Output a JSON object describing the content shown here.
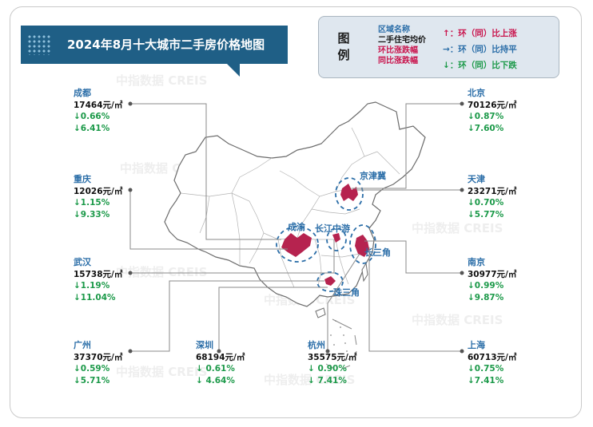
{
  "title": "2024年8月十大城市二手房价格地图",
  "legend": {
    "title": "图例",
    "items": [
      "区域名称",
      "二手住宅均价",
      "环比涨跌幅",
      "同比涨跌幅"
    ],
    "arrow_up": "↑：环（同）比上涨",
    "arrow_flat": "→：环（同）比持平",
    "arrow_down": "↓：环（同）比下跌",
    "colors": {
      "region": "#2b6ea8",
      "price": "#111111",
      "change": "#c9154d",
      "up": "#c9154d",
      "flat": "#2b6ea8",
      "down": "#1d9a4a"
    }
  },
  "regions": [
    "京津冀",
    "成渝",
    "长江中游",
    "长三角",
    "珠三角"
  ],
  "watermark": "中指数据 CREIS",
  "cities": {
    "chengdu": {
      "name": "成都",
      "price": "17464元/㎡",
      "mom": "↓0.66%",
      "yoy": "↓6.41%"
    },
    "chongqing": {
      "name": "重庆",
      "price": "12026元/㎡",
      "mom": "↓1.15%",
      "yoy": "↓9.33%"
    },
    "wuhan": {
      "name": "武汉",
      "price": "15738元/㎡",
      "mom": "↓1.19%",
      "yoy": "↓11.04%"
    },
    "guangzhou": {
      "name": "广州",
      "price": "37370元/㎡",
      "mom": "↓0.59%",
      "yoy": "↓5.71%"
    },
    "shenzhen": {
      "name": "深圳",
      "price": "68194元/㎡",
      "mom": "↓ 0.61%",
      "yoy": "↓ 4.64%"
    },
    "hangzhou": {
      "name": "杭州",
      "price": "35575元/㎡",
      "mom": "↓ 0.90%",
      "yoy": "↓ 7.41%"
    },
    "beijing": {
      "name": "北京",
      "price": "70126元/㎡",
      "mom": "↓0.87%",
      "yoy": "↓7.60%"
    },
    "tianjin": {
      "name": "天津",
      "price": "23271元/㎡",
      "mom": "↓0.70%",
      "yoy": "↓5.77%"
    },
    "nanjing": {
      "name": "南京",
      "price": "30977元/㎡",
      "mom": "↓0.99%",
      "yoy": "↓9.87%"
    },
    "shanghai": {
      "name": "上海",
      "price": "60713元/㎡",
      "mom": "↓0.75%",
      "yoy": "↓7.41%"
    }
  }
}
